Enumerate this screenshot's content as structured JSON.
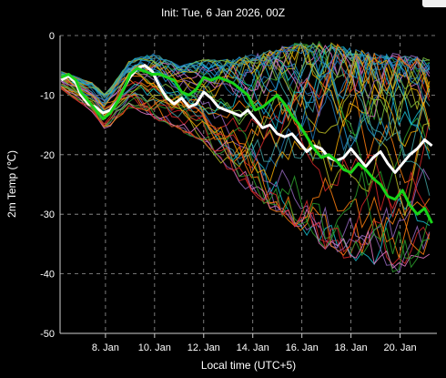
{
  "chart_data": {
    "type": "line",
    "title": "Init: Tue, 6 Jan 2026, 00Z",
    "xlabel": "Local time (UTC+5)",
    "ylabel": "2m Temp (℃)",
    "xlim": [
      6.15,
      21.5
    ],
    "ylim": [
      -50,
      0
    ],
    "yticks": [
      0,
      -10,
      -20,
      -30,
      -40,
      -50
    ],
    "xticks": [
      {
        "x": 8,
        "label": "8. Jan"
      },
      {
        "x": 10,
        "label": "10. Jan"
      },
      {
        "x": 12,
        "label": "12. Jan"
      },
      {
        "x": 14,
        "label": "14. Jan"
      },
      {
        "x": 16,
        "label": "16. Jan"
      },
      {
        "x": 18,
        "label": "18. Jan"
      },
      {
        "x": 20,
        "label": "20. Jan"
      }
    ],
    "grid": true,
    "ensemble": {
      "members": 40,
      "colors": [
        "#1f77b4",
        "#2ca02c",
        "#ff7f0e",
        "#d62728",
        "#17becf",
        "#bcbd22",
        "#9467bd",
        "#e377c2",
        "#1f9bd6",
        "#7fbf3f",
        "#f2a900",
        "#3fa0a0"
      ],
      "spread": [
        {
          "x": 6.2,
          "lo": -9,
          "hi": -6
        },
        {
          "x": 7.5,
          "lo": -13,
          "hi": -8
        },
        {
          "x": 8.0,
          "lo": -16,
          "hi": -10
        },
        {
          "x": 9.0,
          "lo": -12,
          "hi": -4
        },
        {
          "x": 10.0,
          "lo": -14,
          "hi": -3
        },
        {
          "x": 11.0,
          "lo": -16,
          "hi": -5
        },
        {
          "x": 12.0,
          "lo": -18,
          "hi": -4
        },
        {
          "x": 13.0,
          "lo": -23,
          "hi": -4
        },
        {
          "x": 14.0,
          "lo": -27,
          "hi": -3
        },
        {
          "x": 15.0,
          "lo": -30,
          "hi": -2
        },
        {
          "x": 16.0,
          "lo": -33,
          "hi": -1
        },
        {
          "x": 17.0,
          "lo": -36,
          "hi": -1
        },
        {
          "x": 18.0,
          "lo": -38,
          "hi": -2
        },
        {
          "x": 19.0,
          "lo": -39,
          "hi": -3
        },
        {
          "x": 20.0,
          "lo": -40,
          "hi": -3
        },
        {
          "x": 21.3,
          "lo": -37,
          "hi": -4
        }
      ]
    },
    "series": [
      {
        "color": "#ffffff",
        "x": [
          6.2,
          6.5,
          6.8,
          7.0,
          7.3,
          7.6,
          7.9,
          8.2,
          8.5,
          8.8,
          9.0,
          9.3,
          9.6,
          9.9,
          10.2,
          10.5,
          10.8,
          11.1,
          11.4,
          11.7,
          12.0,
          12.3,
          12.6,
          12.9,
          13.2,
          13.5,
          13.8,
          14.1,
          14.4,
          14.7,
          15.0,
          15.3,
          15.6,
          15.9,
          16.2,
          16.5,
          16.8,
          17.1,
          17.4,
          17.7,
          18.0,
          18.3,
          18.6,
          18.9,
          19.2,
          19.5,
          19.8,
          20.1,
          20.4,
          20.7,
          21.0,
          21.3
        ],
        "y": [
          -7.5,
          -6.8,
          -8.0,
          -10.0,
          -11.5,
          -12.0,
          -13.0,
          -12.5,
          -11.0,
          -8.5,
          -7.0,
          -5.5,
          -5.0,
          -6.0,
          -8.5,
          -10.5,
          -11.5,
          -10.5,
          -12.0,
          -11.5,
          -9.5,
          -10.5,
          -12.0,
          -12.5,
          -13.0,
          -13.5,
          -12.5,
          -14.0,
          -15.5,
          -15.0,
          -16.5,
          -17.0,
          -16.5,
          -18.0,
          -19.5,
          -18.5,
          -19.0,
          -20.5,
          -21.0,
          -20.5,
          -19.0,
          -20.5,
          -22.0,
          -20.5,
          -19.5,
          -21.5,
          -23.0,
          -21.5,
          -20.0,
          -19.0,
          -17.5,
          -18.5
        ]
      },
      {
        "color": "#19d419",
        "x": [
          6.2,
          6.5,
          6.8,
          7.0,
          7.3,
          7.6,
          7.9,
          8.2,
          8.5,
          8.8,
          9.0,
          9.3,
          9.6,
          9.9,
          10.2,
          10.5,
          10.8,
          11.1,
          11.4,
          11.7,
          12.0,
          12.3,
          12.6,
          12.9,
          13.2,
          13.5,
          13.8,
          14.1,
          14.4,
          14.7,
          15.0,
          15.3,
          15.6,
          15.9,
          16.2,
          16.5,
          16.8,
          17.1,
          17.4,
          17.7,
          18.0,
          18.3,
          18.6,
          18.9,
          19.2,
          19.5,
          19.8,
          20.1,
          20.4,
          20.7,
          21.0,
          21.3
        ],
        "y": [
          -7.0,
          -6.5,
          -7.5,
          -9.5,
          -11.0,
          -12.5,
          -14.0,
          -13.0,
          -11.0,
          -8.5,
          -6.5,
          -5.5,
          -6.0,
          -6.5,
          -6.5,
          -7.0,
          -7.5,
          -9.5,
          -10.0,
          -9.0,
          -7.0,
          -7.5,
          -7.0,
          -7.5,
          -8.0,
          -9.0,
          -10.0,
          -12.5,
          -12.0,
          -11.0,
          -10.0,
          -11.5,
          -13.5,
          -15.0,
          -17.0,
          -19.0,
          -20.5,
          -20.0,
          -21.0,
          -22.5,
          -23.0,
          -21.5,
          -22.5,
          -24.0,
          -25.0,
          -27.0,
          -27.5,
          -26.0,
          -28.5,
          -30.0,
          -29.0,
          -31.5
        ]
      }
    ]
  }
}
